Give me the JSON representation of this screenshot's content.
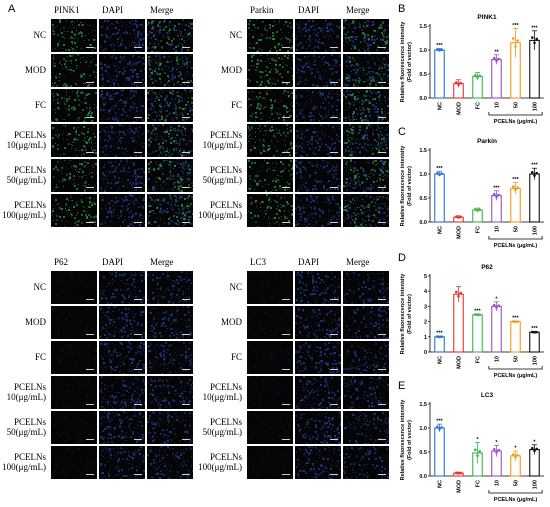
{
  "panel_letters": [
    "A",
    "B",
    "C",
    "D",
    "E"
  ],
  "microscopy": {
    "groups": [
      {
        "columns": [
          "PINK1",
          "DAPI",
          "Merge"
        ],
        "marker_color": "#2a8a3a"
      },
      {
        "columns": [
          "Parkin",
          "DAPI",
          "Merge"
        ],
        "marker_color": "#2a8a3a"
      },
      {
        "columns": [
          "P62",
          "DAPI",
          "Merge"
        ],
        "marker_color": "#101410"
      },
      {
        "columns": [
          "LC3",
          "DAPI",
          "Merge"
        ],
        "marker_color": "#0e130e"
      }
    ],
    "rows": [
      {
        "line1": "NC",
        "line2": ""
      },
      {
        "line1": "MOD",
        "line2": ""
      },
      {
        "line1": "FC",
        "line2": ""
      },
      {
        "line1": "PCELNs",
        "line2": "10(μg/mL)"
      },
      {
        "line1": "PCELNs",
        "line2": "50(μg/mL)"
      },
      {
        "line1": "PCELNs",
        "line2": "100(μg/mL)"
      }
    ],
    "dapi_color": "#1e3a8a"
  },
  "chart_data": [
    {
      "panel": "B",
      "type": "bar",
      "title": "PINK1",
      "ylabel": "Relative fluorescence intensity (Fold of vector)",
      "ylabel_line1": "Relative fluorescence intensity",
      "ylabel_line2": "(Fold of vector)",
      "categories": [
        "NC",
        "MOD",
        "FC",
        "10",
        "50",
        "100"
      ],
      "values": [
        1.0,
        0.3,
        0.45,
        0.8,
        1.15,
        1.2
      ],
      "errors": [
        0.03,
        0.08,
        0.08,
        0.1,
        0.3,
        0.2
      ],
      "significance": [
        "***",
        "",
        "",
        "**",
        "***",
        "***"
      ],
      "colors": [
        "#2e6fd8",
        "#e8332a",
        "#3cb54a",
        "#9b4dca",
        "#f39a1e",
        "#111111"
      ],
      "ylim": [
        0,
        1.5
      ],
      "yticks": [
        "0.0",
        "0.5",
        "1.0",
        "1.5"
      ],
      "group_label": "PCELNs (μg/mL)"
    },
    {
      "panel": "C",
      "type": "bar",
      "title": "Parkin",
      "ylabel": "Relative fluorescence intensity (Fold of vector)",
      "ylabel_line1": "Relative fluorescence intensity",
      "ylabel_line2": "(Fold of vector)",
      "categories": [
        "NC",
        "MOD",
        "FC",
        "10",
        "50",
        "100"
      ],
      "values": [
        1.0,
        0.1,
        0.25,
        0.55,
        0.7,
        1.0
      ],
      "errors": [
        0.05,
        0.03,
        0.04,
        0.1,
        0.12,
        0.12
      ],
      "significance": [
        "***",
        "",
        "",
        "***",
        "***",
        "***"
      ],
      "colors": [
        "#2e6fd8",
        "#e8332a",
        "#3cb54a",
        "#9b4dca",
        "#f39a1e",
        "#111111"
      ],
      "ylim": [
        0,
        1.5
      ],
      "yticks": [
        "0.0",
        "0.5",
        "1.0",
        "1.5"
      ],
      "group_label": "PCELNs (μg/mL)"
    },
    {
      "panel": "D",
      "type": "bar",
      "title": "P62",
      "ylabel": "Relative fluorescence intensity (Fold of vector)",
      "ylabel_line1": "Relative fluorescence intensity",
      "ylabel_line2": "(Fold of vector)",
      "categories": [
        "NC",
        "MOD",
        "FC",
        "10",
        "50",
        "100"
      ],
      "values": [
        1.0,
        3.8,
        2.45,
        3.0,
        2.0,
        1.3
      ],
      "errors": [
        0.05,
        0.5,
        0.05,
        0.3,
        0.03,
        0.05
      ],
      "significance": [
        "***",
        "",
        "***",
        "*",
        "***",
        "***"
      ],
      "colors": [
        "#2e6fd8",
        "#e8332a",
        "#3cb54a",
        "#9b4dca",
        "#f39a1e",
        "#111111"
      ],
      "ylim": [
        0,
        5
      ],
      "yticks": [
        "0",
        "1",
        "2",
        "3",
        "4",
        "5"
      ],
      "group_label": "PCELNs (μg/mL)"
    },
    {
      "panel": "E",
      "type": "bar",
      "title": "LC3",
      "ylabel": "Relative fluorescence intensity (Fold of vector)",
      "ylabel_line1": "Relative fluorescence intensity",
      "ylabel_line2": "(Fold of vector)",
      "categories": [
        "NC",
        "MOD",
        "FC",
        "10",
        "50",
        "100"
      ],
      "values": [
        1.0,
        0.06,
        0.48,
        0.52,
        0.42,
        0.55
      ],
      "errors": [
        0.08,
        0.02,
        0.22,
        0.12,
        0.1,
        0.1
      ],
      "significance": [
        "***",
        "",
        "*",
        "*",
        "*",
        "*"
      ],
      "colors": [
        "#2e6fd8",
        "#e8332a",
        "#3cb54a",
        "#9b4dca",
        "#f39a1e",
        "#111111"
      ],
      "ylim": [
        0,
        1.5
      ],
      "yticks": [
        "0.0",
        "0.5",
        "1.0",
        "1.5"
      ],
      "group_label": "PCELNs (μg/mL)"
    }
  ]
}
